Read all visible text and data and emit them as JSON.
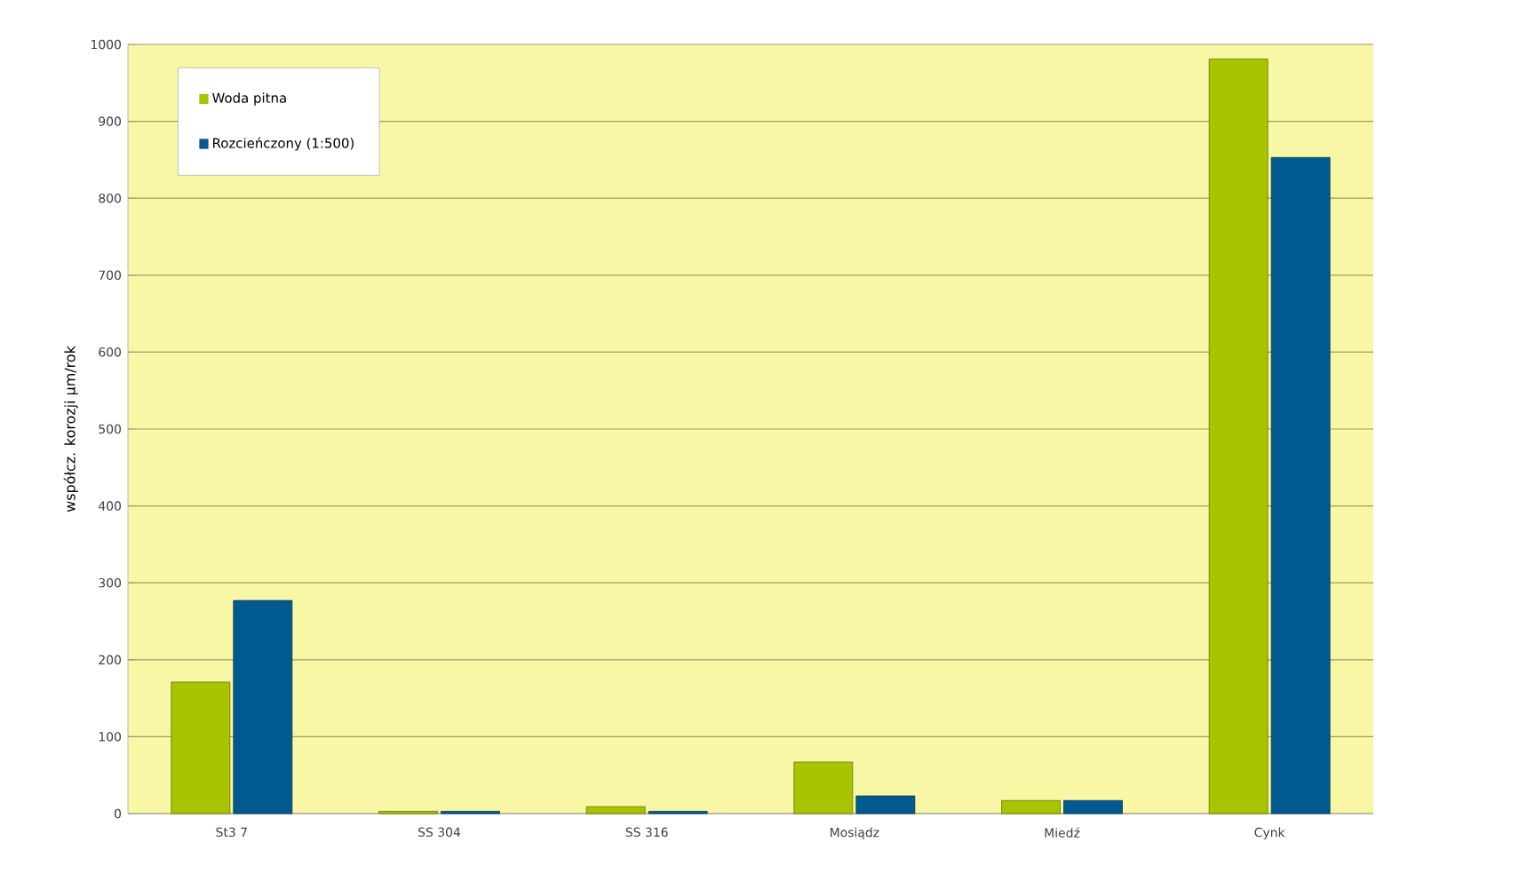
{
  "chart_data": {
    "type": "bar",
    "ylabel": "współcz. korozji µm/rok",
    "categories": [
      "St3 7",
      "SS 304",
      "SS 316",
      "Mosiądz",
      "Miedź",
      "Cynk"
    ],
    "series": [
      {
        "name": "Woda pitna",
        "color": "#a8c300",
        "values": [
          171,
          3,
          9,
          67,
          17,
          981
        ]
      },
      {
        "name": "Rozcieńczony (1:500)",
        "color": "#005a8f",
        "values": [
          277,
          3,
          3,
          23,
          17,
          853
        ]
      }
    ],
    "ylim": [
      0,
      1000
    ],
    "yticks": [
      0,
      100,
      200,
      300,
      400,
      500,
      600,
      700,
      800,
      900,
      1000
    ],
    "grid": "y",
    "legend": "top left"
  }
}
